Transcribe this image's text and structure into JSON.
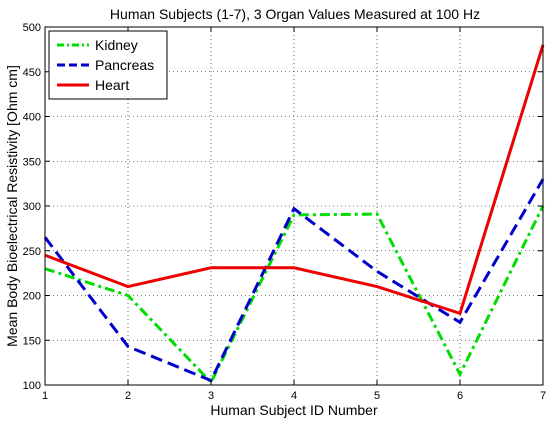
{
  "chart_data": {
    "type": "line",
    "title": "Human Subjects (1-7), 3 Organ Values Measured at 100 Hz",
    "xlabel": "Human Subject ID Number",
    "ylabel": "Mean Body Bioelectrical Resistivity [Ohm cm]",
    "x": [
      1,
      2,
      3,
      4,
      5,
      6,
      7
    ],
    "xlim": [
      1,
      7
    ],
    "ylim": [
      100,
      500
    ],
    "xticks": [
      "1",
      "2",
      "3",
      "4",
      "5",
      "6",
      "7"
    ],
    "yticks": [
      "100",
      "150",
      "200",
      "250",
      "300",
      "350",
      "400",
      "450",
      "500"
    ],
    "grid": true,
    "legend_position": "top-left",
    "series": [
      {
        "name": "Kidney",
        "color": "#00dd00",
        "dash": "dash-dot",
        "values": [
          230,
          200,
          103,
          290,
          291,
          112,
          300
        ]
      },
      {
        "name": "Pancreas",
        "color": "#0000cc",
        "dash": "dashed",
        "values": [
          265,
          143,
          105,
          297,
          227,
          170,
          330
        ]
      },
      {
        "name": "Heart",
        "color": "#ee0000",
        "dash": "solid",
        "values": [
          245,
          210,
          231,
          231,
          210,
          180,
          480
        ]
      }
    ]
  }
}
